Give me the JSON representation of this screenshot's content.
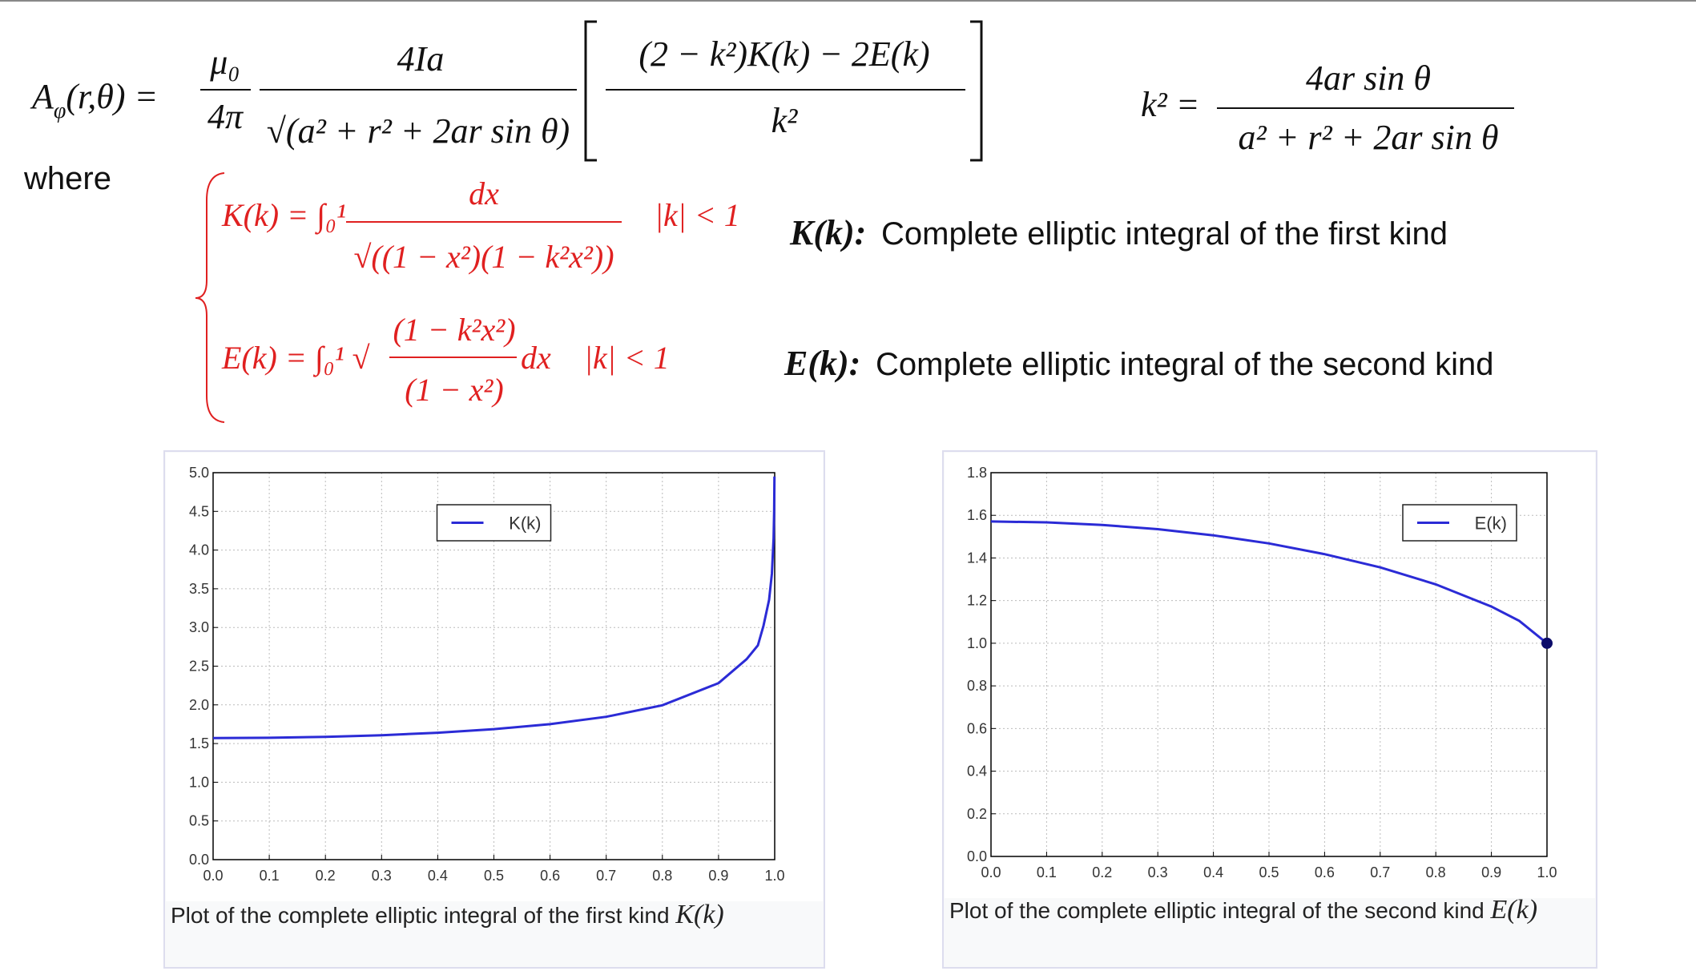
{
  "formula_A": {
    "symbol": "A",
    "subscript": "φ",
    "args": "(r,θ) =",
    "factor_numerator": "μ₀",
    "factor_denominator": "4π",
    "numerator": "4Ia",
    "denominator": "√(a² + r² + 2ar sin θ)",
    "bracket_numerator": "(2 − k²)K(k) − 2E(k)",
    "bracket_denominator": "k²"
  },
  "formula_k": {
    "lhs": "k² =",
    "numerator": "4ar sin θ",
    "denominator": "a² + r² + 2ar sin θ"
  },
  "where": "where",
  "K_definition": {
    "lhs": "K(k) = ∫₀¹",
    "numerator": "dx",
    "denominator": "√((1 − x²)(1 − k²x²))",
    "condition": "|k| < 1"
  },
  "E_definition": {
    "lhs": "E(k) = ∫₀¹ √",
    "numerator": "(1 − k²x²)",
    "denominator": "(1 − x²)",
    "differential": "dx",
    "condition": "|k| < 1"
  },
  "descriptions": [
    {
      "symbol": "K(k):",
      "text": "Complete elliptic integral of the first kind"
    },
    {
      "symbol": "E(k):",
      "text": "Complete elliptic integral of the second kind"
    }
  ],
  "chart_data": [
    {
      "type": "line",
      "x": [
        0,
        0.1,
        0.2,
        0.3,
        0.4,
        0.5,
        0.6,
        0.7,
        0.8,
        0.9,
        0.95,
        0.97,
        0.98,
        0.99,
        0.995,
        0.998,
        0.999,
        0.9996
      ],
      "series": [
        {
          "name": "K(k)",
          "color": "#2b2bd6",
          "values": [
            1.571,
            1.575,
            1.587,
            1.608,
            1.64,
            1.686,
            1.751,
            1.846,
            1.995,
            2.281,
            2.59,
            2.768,
            3.022,
            3.357,
            3.696,
            4.15,
            4.496,
            4.95
          ]
        }
      ],
      "xlim": [
        0,
        1
      ],
      "ylim": [
        0,
        5
      ],
      "xticks": [
        {
          "value": 0,
          "label": "0.0"
        },
        0.1,
        0.2,
        0.3,
        0.4,
        0.5,
        0.6,
        0.7,
        0.8,
        0.9,
        {
          "value": 1,
          "label": "1.0"
        }
      ],
      "yticks": [
        {
          "value": 0,
          "label": "0.0"
        },
        0.5,
        {
          "value": 1,
          "label": "1.0"
        },
        1.5,
        {
          "value": 2,
          "label": "2.0"
        },
        2.5,
        {
          "value": 3,
          "label": "3.0"
        },
        3.5,
        {
          "value": 4,
          "label": "4.0"
        },
        4.5,
        {
          "value": 5,
          "label": "5.0"
        }
      ],
      "grid": true,
      "legend": "upper center",
      "end_marker": false,
      "caption": "Plot of the complete elliptic integral of the first kind",
      "caption_symbol": "K(k)"
    },
    {
      "type": "line",
      "x": [
        0,
        0.1,
        0.2,
        0.3,
        0.4,
        0.5,
        0.6,
        0.7,
        0.8,
        0.9,
        0.95,
        1
      ],
      "series": [
        {
          "name": "E(k)",
          "color": "#2b2bd6",
          "values": [
            1.571,
            1.567,
            1.555,
            1.535,
            1.506,
            1.468,
            1.418,
            1.356,
            1.276,
            1.172,
            1.105,
            1.0
          ]
        }
      ],
      "xlim": [
        0,
        1
      ],
      "ylim": [
        0,
        1.8
      ],
      "xticks": [
        {
          "value": 0,
          "label": "0.0"
        },
        0.1,
        0.2,
        0.3,
        0.4,
        0.5,
        0.6,
        0.7,
        0.8,
        0.9,
        {
          "value": 1,
          "label": "1.0"
        }
      ],
      "yticks": [
        {
          "value": 0,
          "label": "0.0"
        },
        0.2,
        0.4,
        0.6,
        0.8,
        {
          "value": 1,
          "label": "1.0"
        },
        1.2,
        1.4,
        1.6,
        1.8
      ],
      "grid": true,
      "legend": "upper right",
      "end_marker": true,
      "caption": "Plot of the complete elliptic integral of the second kind",
      "caption_symbol": "E(k)"
    }
  ]
}
